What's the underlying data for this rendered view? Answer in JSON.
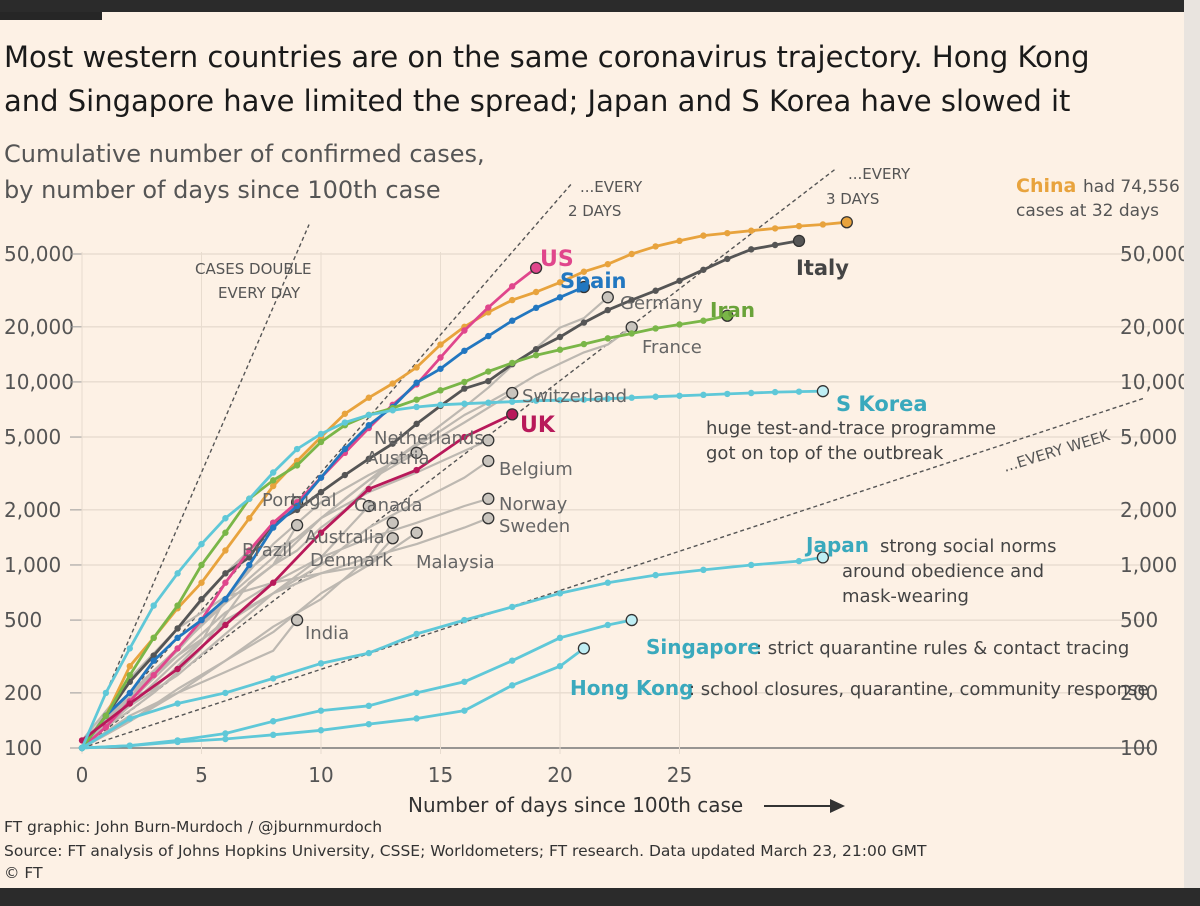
{
  "headline": {
    "line1": "Most western countries are on the same coronavirus trajectory. Hong Kong",
    "line2": "and Singapore have limited the spread; Japan and S Korea have slowed it"
  },
  "subtitle": {
    "line1": "Cumulative number of confirmed cases,",
    "line2": "by number of days since 100th case"
  },
  "footer": {
    "credit": "FT graphic: John Burn-Murdoch / @jburnmurdoch",
    "source": "Source: FT analysis of Johns Hopkins University, CSSE; Worldometers; FT research. Data updated March 23, 21:00 GMT",
    "copyright": "© FT"
  },
  "chart_data": {
    "type": "line",
    "log_y": true,
    "xlabel": "Number of days since 100th case",
    "ylabel": "",
    "xlim": [
      0,
      33
    ],
    "ylim": [
      100,
      80000
    ],
    "x_ticks": [
      0,
      5,
      10,
      15,
      20,
      25
    ],
    "y_ticks": [
      {
        "value": 100,
        "label": "100"
      },
      {
        "value": 200,
        "label": "200"
      },
      {
        "value": 500,
        "label": "500"
      },
      {
        "value": 1000,
        "label": "1,000"
      },
      {
        "value": 2000,
        "label": "2,000"
      },
      {
        "value": 5000,
        "label": "5,000"
      },
      {
        "value": 10000,
        "label": "10,000"
      },
      {
        "value": 20000,
        "label": "20,000"
      },
      {
        "value": 50000,
        "label": "50,000"
      }
    ],
    "reference_lines": [
      {
        "label1": "CASES DOUBLE",
        "label2": "EVERY DAY",
        "doubling_days": 1
      },
      {
        "label1": "...EVERY",
        "label2": "2 DAYS",
        "doubling_days": 2
      },
      {
        "label1": "...EVERY",
        "label2": "3 DAYS",
        "doubling_days": 3
      },
      {
        "label1": "...EVERY WEEK",
        "label2": "",
        "doubling_days": 7
      }
    ],
    "colors": {
      "china": "#e8a33d",
      "italy": "#555555",
      "us": "#e0468c",
      "spain": "#2277c0",
      "iran": "#7ab648",
      "uk": "#b8195a",
      "teal": "#5fc8d8",
      "grey": "#bdb8b1",
      "reference": "#555555"
    },
    "series": [
      {
        "name": "China",
        "color": "china",
        "x": [
          0,
          1,
          2,
          3,
          4,
          5,
          6,
          7,
          8,
          9,
          10,
          11,
          12,
          13,
          14,
          15,
          16,
          17,
          18,
          19,
          20,
          21,
          22,
          23,
          24,
          25,
          26,
          27,
          28,
          29,
          30,
          31,
          32
        ],
        "y": [
          100,
          150,
          280,
          400,
          580,
          800,
          1200,
          1800,
          2700,
          3700,
          5000,
          6700,
          8200,
          9800,
          12000,
          16000,
          20000,
          24000,
          28000,
          31000,
          35000,
          40000,
          44000,
          50000,
          55000,
          59000,
          63000,
          65000,
          67000,
          69000,
          71000,
          72500,
          74556
        ]
      },
      {
        "name": "Italy",
        "color": "italy",
        "x": [
          0,
          1,
          2,
          3,
          4,
          5,
          6,
          7,
          8,
          9,
          10,
          11,
          12,
          13,
          14,
          15,
          16,
          17,
          18,
          19,
          20,
          21,
          22,
          23,
          24,
          25,
          26,
          27,
          28,
          29,
          30
        ],
        "y": [
          100,
          150,
          230,
          320,
          450,
          650,
          900,
          1100,
          1700,
          2000,
          2500,
          3100,
          3800,
          4600,
          5900,
          7400,
          9200,
          10100,
          12500,
          15100,
          17600,
          21100,
          24700,
          28000,
          31500,
          35700,
          41000,
          47000,
          53000,
          56000,
          59000
        ]
      },
      {
        "name": "US",
        "color": "us",
        "x": [
          0,
          1,
          2,
          3,
          4,
          5,
          6,
          7,
          8,
          9,
          10,
          11,
          12,
          13,
          14,
          15,
          16,
          17,
          18,
          19
        ],
        "y": [
          100,
          130,
          180,
          250,
          350,
          500,
          800,
          1200,
          1700,
          2200,
          3000,
          4100,
          5600,
          7500,
          9700,
          13600,
          19100,
          25500,
          33300,
          42000
        ]
      },
      {
        "name": "Spain",
        "color": "spain",
        "x": [
          0,
          1,
          2,
          3,
          4,
          5,
          6,
          7,
          8,
          9,
          10,
          11,
          12,
          13,
          14,
          15,
          16,
          17,
          18,
          19,
          20,
          21
        ],
        "y": [
          100,
          150,
          200,
          300,
          400,
          500,
          650,
          1000,
          1600,
          2100,
          3000,
          4300,
          5800,
          7300,
          9900,
          11800,
          14800,
          17800,
          21600,
          25400,
          29000,
          33000
        ]
      },
      {
        "name": "Germany",
        "color": "grey",
        "x": [
          0,
          1,
          2,
          3,
          4,
          5,
          6,
          7,
          8,
          9,
          10,
          11,
          12,
          13,
          14,
          15,
          16,
          17,
          18,
          19,
          20,
          21,
          22
        ],
        "y": [
          100,
          130,
          160,
          200,
          260,
          350,
          530,
          800,
          1000,
          1200,
          1600,
          2000,
          2700,
          3700,
          4600,
          5800,
          7300,
          9300,
          12300,
          15300,
          19800,
          22300,
          29000
        ]
      },
      {
        "name": "Iran",
        "color": "iran",
        "x": [
          0,
          1,
          2,
          3,
          4,
          5,
          6,
          7,
          8,
          9,
          10,
          11,
          12,
          13,
          14,
          15,
          16,
          17,
          18,
          19,
          20,
          21,
          22,
          23,
          24,
          25,
          26,
          27
        ],
        "y": [
          100,
          150,
          250,
          400,
          600,
          1000,
          1500,
          2300,
          2900,
          3500,
          4700,
          5800,
          6600,
          7200,
          8000,
          9000,
          10000,
          11400,
          12700,
          14000,
          15000,
          16100,
          17300,
          18400,
          19600,
          20600,
          21600,
          23000
        ]
      },
      {
        "name": "France",
        "color": "grey",
        "x": [
          0,
          1,
          2,
          3,
          4,
          5,
          6,
          7,
          8,
          9,
          10,
          11,
          12,
          13,
          14,
          15,
          16,
          17,
          18,
          19,
          20,
          21,
          22,
          23
        ],
        "y": [
          100,
          130,
          190,
          210,
          280,
          380,
          650,
          950,
          1200,
          1400,
          1800,
          2300,
          2900,
          3700,
          4500,
          5400,
          6600,
          7700,
          9100,
          10900,
          12600,
          14500,
          16000,
          19900
        ]
      },
      {
        "name": "S Korea",
        "color": "teal",
        "x": [
          0,
          1,
          2,
          3,
          4,
          5,
          6,
          7,
          8,
          9,
          10,
          11,
          12,
          13,
          14,
          15,
          16,
          17,
          18,
          19,
          20,
          21,
          22,
          23,
          24,
          25,
          26,
          27,
          28,
          29,
          30,
          31
        ],
        "y": [
          100,
          200,
          350,
          600,
          900,
          1300,
          1800,
          2300,
          3200,
          4300,
          5200,
          6000,
          6600,
          7000,
          7300,
          7500,
          7600,
          7700,
          7800,
          7900,
          7950,
          8000,
          8100,
          8200,
          8300,
          8400,
          8500,
          8600,
          8700,
          8800,
          8850,
          8900
        ]
      },
      {
        "name": "Switzerland",
        "color": "grey",
        "x": [
          0,
          2,
          4,
          6,
          8,
          10,
          12,
          14,
          16,
          18
        ],
        "y": [
          100,
          190,
          340,
          660,
          1300,
          2200,
          3100,
          4200,
          6000,
          8700
        ]
      },
      {
        "name": "UK",
        "color": "uk",
        "x": [
          0,
          2,
          4,
          6,
          8,
          10,
          12,
          14,
          16,
          18
        ],
        "y": [
          110,
          175,
          270,
          470,
          800,
          1500,
          2600,
          3300,
          5000,
          6650
        ]
      },
      {
        "name": "Netherlands",
        "color": "grey",
        "x": [
          0,
          2,
          4,
          6,
          8,
          10,
          12,
          14,
          16,
          17
        ],
        "y": [
          110,
          190,
          350,
          650,
          1100,
          1800,
          2500,
          3200,
          4200,
          4800
        ]
      },
      {
        "name": "Austria",
        "color": "grey",
        "x": [
          0,
          2,
          4,
          6,
          8,
          10,
          12,
          14
        ],
        "y": [
          100,
          180,
          350,
          620,
          1000,
          1800,
          2900,
          4100
        ]
      },
      {
        "name": "Belgium",
        "color": "grey",
        "x": [
          0,
          2,
          4,
          6,
          8,
          10,
          12,
          14,
          16,
          17
        ],
        "y": [
          100,
          170,
          300,
          500,
          700,
          1000,
          1600,
          2200,
          3000,
          3700
        ]
      },
      {
        "name": "Portugal",
        "color": "grey",
        "x": [
          0,
          2,
          4,
          6,
          8,
          9
        ],
        "y": [
          100,
          240,
          450,
          900,
          1600,
          2200
        ]
      },
      {
        "name": "Canada",
        "color": "grey",
        "x": [
          0,
          2,
          4,
          6,
          8,
          10,
          12
        ],
        "y": [
          100,
          170,
          250,
          420,
          700,
          1100,
          2100
        ]
      },
      {
        "name": "Norway",
        "color": "grey",
        "x": [
          0,
          2,
          4,
          6,
          8,
          10,
          12,
          14,
          16,
          17
        ],
        "y": [
          100,
          180,
          320,
          550,
          800,
          1100,
          1400,
          1700,
          2100,
          2300
        ]
      },
      {
        "name": "Sweden",
        "color": "grey",
        "x": [
          0,
          2,
          4,
          6,
          8,
          10,
          12,
          14,
          16,
          17
        ],
        "y": [
          100,
          200,
          320,
          480,
          700,
          900,
          1100,
          1300,
          1600,
          1800
        ]
      },
      {
        "name": "Brazil",
        "color": "grey",
        "x": [
          0,
          2,
          4,
          6,
          8,
          9
        ],
        "y": [
          100,
          200,
          350,
          620,
          1000,
          1650
        ]
      },
      {
        "name": "Australia",
        "color": "grey",
        "x": [
          0,
          2,
          4,
          6,
          8,
          10,
          12,
          13
        ],
        "y": [
          100,
          140,
          210,
          300,
          460,
          650,
          1100,
          1700
        ]
      },
      {
        "name": "Denmark",
        "color": "grey",
        "x": [
          0,
          2,
          4,
          6,
          8,
          10,
          12,
          13
        ],
        "y": [
          110,
          230,
          450,
          670,
          800,
          900,
          1000,
          1400
        ]
      },
      {
        "name": "Malaysia",
        "color": "grey",
        "x": [
          0,
          2,
          4,
          6,
          8,
          10,
          12,
          14
        ],
        "y": [
          100,
          150,
          200,
          300,
          430,
          700,
          1000,
          1500
        ]
      },
      {
        "name": "India",
        "color": "grey",
        "x": [
          0,
          2,
          4,
          6,
          8,
          9
        ],
        "y": [
          100,
          140,
          200,
          260,
          340,
          500
        ]
      },
      {
        "name": "Japan",
        "color": "teal",
        "x": [
          0,
          2,
          4,
          6,
          8,
          10,
          12,
          14,
          16,
          18,
          20,
          22,
          24,
          26,
          28,
          30,
          31
        ],
        "y": [
          100,
          145,
          175,
          200,
          240,
          290,
          330,
          420,
          500,
          590,
          700,
          800,
          880,
          940,
          1000,
          1050,
          1100
        ]
      },
      {
        "name": "Singapore",
        "color": "teal",
        "x": [
          0,
          2,
          4,
          6,
          8,
          10,
          12,
          14,
          16,
          18,
          20,
          22,
          23
        ],
        "y": [
          100,
          103,
          110,
          120,
          140,
          160,
          170,
          200,
          230,
          300,
          400,
          470,
          500
        ]
      },
      {
        "name": "Hong Kong",
        "color": "teal",
        "x": [
          0,
          2,
          4,
          6,
          8,
          10,
          12,
          14,
          16,
          18,
          20,
          21
        ],
        "y": [
          100,
          103,
          108,
          112,
          118,
          125,
          135,
          145,
          160,
          220,
          280,
          350
        ]
      }
    ],
    "annotations": {
      "china_name": "China",
      "china_note_1": "had 74,556",
      "china_note_2": "cases at 32 days",
      "korea_note_1": "huge test-and-trace programme",
      "korea_note_2": "got on top of the outbreak",
      "japan_note_1": "strong social norms",
      "japan_note_2": "around obedience and",
      "japan_note_3": "mask-wearing",
      "singapore_note": ": strict quarantine rules & contact tracing",
      "hongkong_note": ": school closures, quarantine, community response"
    }
  }
}
